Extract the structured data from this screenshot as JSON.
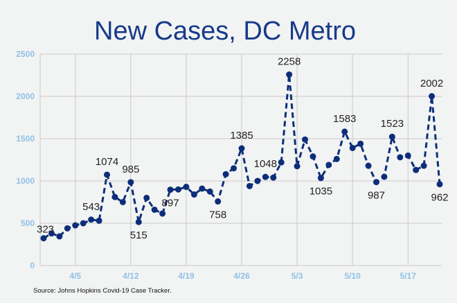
{
  "chart_data": {
    "type": "line",
    "title": "New Cases, DC Metro",
    "source": "Source: Johns Hopkins Covid-19 Case Tracker.",
    "xlabel": "",
    "ylabel": "",
    "ylim": [
      0,
      2500
    ],
    "y_ticks": [
      0,
      500,
      1000,
      1500,
      2000,
      2500
    ],
    "x_tick_labels": [
      {
        "label": "4/5",
        "index": 4
      },
      {
        "label": "4/12",
        "index": 11
      },
      {
        "label": "4/19",
        "index": 18
      },
      {
        "label": "4/26",
        "index": 25
      },
      {
        "label": "5/3",
        "index": 32
      },
      {
        "label": "5/10",
        "index": 39
      },
      {
        "label": "5/17",
        "index": 46
      }
    ],
    "grid": true,
    "line_style": "dashed",
    "colors": {
      "series": "#0c2e7a",
      "title": "#173a8a",
      "tick": "#8fc1e6"
    },
    "series": [
      {
        "values": [
          323,
          380,
          345,
          440,
          475,
          500,
          543,
          530,
          1074,
          810,
          750,
          985,
          515,
          800,
          660,
          615,
          897,
          900,
          930,
          840,
          910,
          875,
          758,
          1080,
          1150,
          1385,
          940,
          1000,
          1048,
          1040,
          1220,
          2258,
          1175,
          1490,
          1290,
          1035,
          1190,
          1260,
          1583,
          1390,
          1440,
          1180,
          987,
          1050,
          1523,
          1280,
          1300,
          1130,
          1180,
          2002,
          962
        ]
      }
    ],
    "data_labels": [
      {
        "index": 0,
        "text": "323"
      },
      {
        "index": 6,
        "text": "543"
      },
      {
        "index": 8,
        "text": "1074"
      },
      {
        "index": 11,
        "text": "985"
      },
      {
        "index": 12,
        "text": "515"
      },
      {
        "index": 16,
        "text": "897"
      },
      {
        "index": 22,
        "text": "758"
      },
      {
        "index": 25,
        "text": "1385"
      },
      {
        "index": 28,
        "text": "1048"
      },
      {
        "index": 31,
        "text": "2258"
      },
      {
        "index": 35,
        "text": "1035"
      },
      {
        "index": 38,
        "text": "1583"
      },
      {
        "index": 42,
        "text": "987"
      },
      {
        "index": 44,
        "text": "1523"
      },
      {
        "index": 49,
        "text": "2002"
      },
      {
        "index": 50,
        "text": "962"
      }
    ]
  }
}
